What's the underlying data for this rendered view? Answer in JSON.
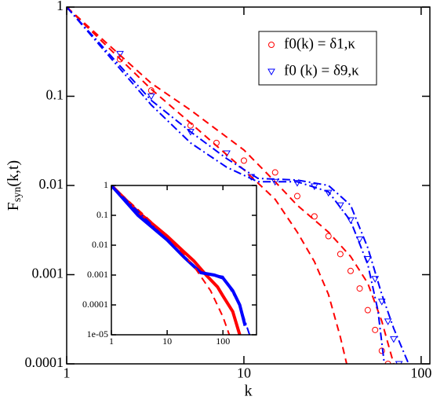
{
  "chart_data": [
    {
      "type": "scatter",
      "log_x": true,
      "log_y": true,
      "xlabel": "k",
      "ylabel": [
        "F",
        "syn",
        "(k,t)"
      ],
      "xlim": [
        1,
        112
      ],
      "ylim": [
        0.0001,
        1
      ],
      "xticks": [
        1,
        10,
        100
      ],
      "yticks": [
        0.0001,
        0.001,
        0.01,
        0.1,
        1
      ],
      "legend": "upper right",
      "series": [
        {
          "name": "f0(k) = δ1,κ",
          "color": "#ff0000",
          "marker": "circle",
          "x": [
            1,
            2,
            3,
            5,
            7,
            10,
            15,
            20,
            25,
            30,
            35,
            40,
            45,
            50,
            55,
            60,
            65
          ],
          "values": [
            1,
            0.26,
            0.116,
            0.047,
            0.03,
            0.019,
            0.014,
            0.0076,
            0.0045,
            0.0027,
            0.0017,
            0.0011,
            0.0007,
            0.0004,
            0.00024,
            0.00014,
            0.0001
          ]
        },
        {
          "name": "f0 (k) = δ9,κ",
          "color": "#0000ff",
          "marker": "triangle",
          "x": [
            1,
            2,
            3,
            5,
            8,
            11,
            15,
            20,
            25,
            30,
            35,
            40,
            45,
            50,
            55,
            60,
            65,
            70,
            75
          ],
          "values": [
            1,
            0.3,
            0.1,
            0.04,
            0.023,
            0.0125,
            0.011,
            0.0107,
            0.0098,
            0.0083,
            0.006,
            0.0041,
            0.0025,
            0.0015,
            0.0009,
            0.0005,
            0.0003,
            0.00019,
            0.0001
          ]
        },
        {
          "color": "#ff0000",
          "dash": "dashed",
          "x": [
            1,
            3,
            5,
            10,
            15,
            20,
            30,
            40,
            50,
            60,
            70
          ],
          "values": [
            1,
            0.14,
            0.07,
            0.025,
            0.011,
            0.006,
            0.003,
            0.0016,
            0.0008,
            0.0003,
            0.0001
          ]
        },
        {
          "color": "#ff0000",
          "dash": "dashed",
          "x": [
            1,
            3,
            5,
            10,
            15,
            20,
            25,
            30,
            35,
            38
          ],
          "values": [
            1,
            0.12,
            0.05,
            0.015,
            0.007,
            0.003,
            0.0014,
            0.0006,
            0.0002,
            0.0001
          ]
        },
        {
          "color": "#0000ff",
          "dash": "dashdot",
          "x": [
            1,
            3,
            5,
            8,
            12,
            20,
            30,
            40,
            50,
            60,
            70,
            85
          ],
          "values": [
            1,
            0.09,
            0.04,
            0.02,
            0.012,
            0.0115,
            0.01,
            0.006,
            0.002,
            0.0006,
            0.00025,
            0.0001
          ]
        },
        {
          "color": "#0000ff",
          "dash": "dashdot",
          "x": [
            1,
            3,
            5,
            8,
            12,
            20,
            30,
            40,
            50,
            57,
            62
          ],
          "values": [
            1,
            0.08,
            0.03,
            0.016,
            0.011,
            0.011,
            0.0085,
            0.004,
            0.0013,
            0.0004,
            0.0001
          ]
        }
      ]
    },
    {
      "type": "line",
      "log_x": true,
      "log_y": true,
      "xlim": [
        1,
        400
      ],
      "ylim": [
        1e-05,
        1
      ],
      "xticks": [
        1,
        10,
        100
      ],
      "yticks": [
        {
          "value": 1e-05,
          "label": "1e-05"
        },
        0.0001,
        0.001,
        0.01,
        0.1,
        1
      ],
      "series": [
        {
          "color": "#ff0000",
          "width": 4,
          "x": [
            1,
            3,
            10,
            20,
            30,
            50,
            80,
            100,
            150,
            200
          ],
          "values": [
            1,
            0.13,
            0.02,
            0.006,
            0.003,
            0.001,
            0.0004,
            0.0002,
            6e-05,
            1e-05
          ]
        },
        {
          "color": "#0000ff",
          "width": 4,
          "x": [
            1,
            3,
            10,
            20,
            40,
            70,
            100,
            150,
            200,
            250
          ],
          "values": [
            1,
            0.1,
            0.015,
            0.004,
            0.0012,
            0.001,
            0.0008,
            0.0003,
            0.0001,
            2e-05
          ]
        },
        {
          "color": "#ff0000",
          "dash": "dashed",
          "x": [
            1,
            10,
            30,
            60,
            100,
            130
          ],
          "values": [
            1,
            0.02,
            0.002,
            0.0003,
            4e-05,
            1e-05
          ]
        },
        {
          "color": "#0000ff",
          "dash": "dashdot",
          "x": [
            1,
            10,
            40,
            100,
            200,
            300
          ],
          "values": [
            1,
            0.015,
            0.0012,
            0.0009,
            0.0001,
            1e-05
          ]
        }
      ]
    }
  ]
}
